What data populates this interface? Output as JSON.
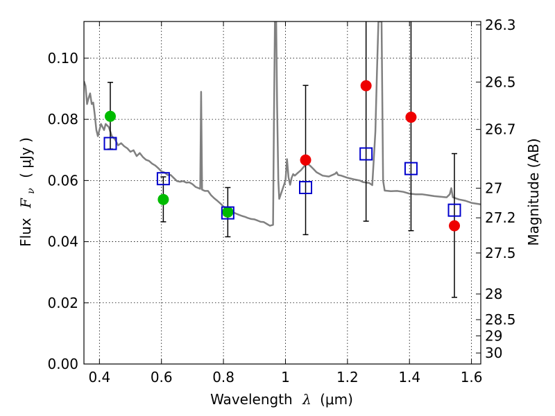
{
  "chart_data": {
    "type": "scatter",
    "xlabel_main": "Wavelength",
    "xlabel_symbol": "λ",
    "xlabel_unit": "(μm)",
    "ylabel_main": "Flux",
    "ylabel_symbol": "F",
    "ylabel_sub": "ν",
    "ylabel_unit": "( μJy )",
    "right_ylabel": "Magnitude (AB)",
    "xlim": [
      0.35,
      1.63
    ],
    "ylim": [
      0.0,
      0.112
    ],
    "grid": true,
    "x_ticks": [
      {
        "value": 0.4,
        "label": "0.4"
      },
      {
        "value": 0.6,
        "label": "0.6"
      },
      {
        "value": 0.8,
        "label": "0.8"
      },
      {
        "value": 1.0,
        "label": "1"
      },
      {
        "value": 1.2,
        "label": "1.2"
      },
      {
        "value": 1.4,
        "label": "1.4"
      },
      {
        "value": 1.6,
        "label": "1.6"
      }
    ],
    "y_ticks": [
      {
        "value": 0.0,
        "label": "0.00"
      },
      {
        "value": 0.02,
        "label": "0.02"
      },
      {
        "value": 0.04,
        "label": "0.04"
      },
      {
        "value": 0.06,
        "label": "0.06"
      },
      {
        "value": 0.08,
        "label": "0.08"
      },
      {
        "value": 0.1,
        "label": "0.10"
      }
    ],
    "right_ticks": [
      {
        "flux": 0.1109,
        "label": "26.3"
      },
      {
        "flux": 0.0922,
        "label": "26.5"
      },
      {
        "flux": 0.0767,
        "label": "26.7"
      },
      {
        "flux": 0.0575,
        "label": "27"
      },
      {
        "flux": 0.0478,
        "label": "27.2"
      },
      {
        "flux": 0.0363,
        "label": "27.5"
      },
      {
        "flux": 0.0229,
        "label": "28"
      },
      {
        "flux": 0.0145,
        "label": "28.5"
      },
      {
        "flux": 0.0092,
        "label": "29"
      },
      {
        "flux": 0.0036,
        "label": "30"
      }
    ],
    "colors": {
      "optical_points": "#00bb00",
      "nir_points": "#ee0000",
      "model_squares": "#0000cc",
      "template": "#808080",
      "errorbar": "#000000"
    },
    "observed_optical": [
      {
        "x": 0.435,
        "y": 0.081
      },
      {
        "x": 0.606,
        "y": 0.0538
      },
      {
        "x": 0.814,
        "y": 0.0497
      }
    ],
    "observed_nir": [
      {
        "x": 1.065,
        "y": 0.0667
      },
      {
        "x": 1.26,
        "y": 0.091
      },
      {
        "x": 1.405,
        "y": 0.0807
      },
      {
        "x": 1.545,
        "y": 0.0452
      }
    ],
    "errorbars": [
      {
        "x": 0.435,
        "low": 0.0703,
        "high": 0.0921
      },
      {
        "x": 0.606,
        "low": 0.0465,
        "high": 0.0612
      },
      {
        "x": 0.814,
        "low": 0.0416,
        "high": 0.0577
      },
      {
        "x": 1.065,
        "low": 0.0423,
        "high": 0.0911
      },
      {
        "x": 1.26,
        "low": 0.0467,
        "high": 0.112
      },
      {
        "x": 1.405,
        "low": 0.0436,
        "high": 0.112
      },
      {
        "x": 1.545,
        "low": 0.0218,
        "high": 0.0688
      }
    ],
    "model_photometry": [
      {
        "x": 0.435,
        "y": 0.0721
      },
      {
        "x": 0.606,
        "y": 0.0606
      },
      {
        "x": 0.814,
        "y": 0.0494
      },
      {
        "x": 1.065,
        "y": 0.0577
      },
      {
        "x": 1.26,
        "y": 0.0687
      },
      {
        "x": 1.405,
        "y": 0.0639
      },
      {
        "x": 1.545,
        "y": 0.0503
      }
    ],
    "template_spectrum": [
      [
        0.35,
        0.0925
      ],
      [
        0.355,
        0.091
      ],
      [
        0.36,
        0.085
      ],
      [
        0.365,
        0.087
      ],
      [
        0.37,
        0.0885
      ],
      [
        0.375,
        0.085
      ],
      [
        0.38,
        0.0855
      ],
      [
        0.385,
        0.0815
      ],
      [
        0.39,
        0.0765
      ],
      [
        0.395,
        0.0745
      ],
      [
        0.4,
        0.0765
      ],
      [
        0.405,
        0.0785
      ],
      [
        0.41,
        0.0775
      ],
      [
        0.415,
        0.0765
      ],
      [
        0.42,
        0.0785
      ],
      [
        0.43,
        0.0775
      ],
      [
        0.44,
        0.0745
      ],
      [
        0.45,
        0.0735
      ],
      [
        0.46,
        0.0715
      ],
      [
        0.47,
        0.0722
      ],
      [
        0.48,
        0.0712
      ],
      [
        0.49,
        0.0705
      ],
      [
        0.5,
        0.0694
      ],
      [
        0.51,
        0.0699
      ],
      [
        0.52,
        0.068
      ],
      [
        0.53,
        0.069
      ],
      [
        0.54,
        0.0677
      ],
      [
        0.55,
        0.0668
      ],
      [
        0.56,
        0.0664
      ],
      [
        0.57,
        0.0655
      ],
      [
        0.58,
        0.0649
      ],
      [
        0.59,
        0.064
      ],
      [
        0.6,
        0.063
      ],
      [
        0.61,
        0.0626
      ],
      [
        0.62,
        0.0618
      ],
      [
        0.63,
        0.0618
      ],
      [
        0.64,
        0.0608
      ],
      [
        0.65,
        0.0598
      ],
      [
        0.66,
        0.0596
      ],
      [
        0.67,
        0.0598
      ],
      [
        0.68,
        0.0593
      ],
      [
        0.69,
        0.0594
      ],
      [
        0.7,
        0.0588
      ],
      [
        0.71,
        0.0579
      ],
      [
        0.72,
        0.0575
      ],
      [
        0.725,
        0.0573
      ],
      [
        0.728,
        0.089
      ],
      [
        0.731,
        0.057
      ],
      [
        0.74,
        0.0566
      ],
      [
        0.75,
        0.0566
      ],
      [
        0.76,
        0.0552
      ],
      [
        0.77,
        0.0542
      ],
      [
        0.78,
        0.0534
      ],
      [
        0.79,
        0.0525
      ],
      [
        0.8,
        0.0515
      ],
      [
        0.81,
        0.0508
      ],
      [
        0.82,
        0.0502
      ],
      [
        0.83,
        0.0497
      ],
      [
        0.84,
        0.0492
      ],
      [
        0.85,
        0.0488
      ],
      [
        0.86,
        0.0484
      ],
      [
        0.87,
        0.0481
      ],
      [
        0.88,
        0.0477
      ],
      [
        0.89,
        0.0474
      ],
      [
        0.9,
        0.0473
      ],
      [
        0.91,
        0.0469
      ],
      [
        0.92,
        0.0465
      ],
      [
        0.93,
        0.0464
      ],
      [
        0.94,
        0.0458
      ],
      [
        0.95,
        0.0452
      ],
      [
        0.96,
        0.0455
      ],
      [
        0.963,
        0.08
      ],
      [
        0.966,
        0.112
      ],
      [
        0.97,
        0.112
      ],
      [
        0.973,
        0.085
      ],
      [
        0.977,
        0.06
      ],
      [
        0.98,
        0.054
      ],
      [
        0.99,
        0.057
      ],
      [
        1.0,
        0.06
      ],
      [
        1.005,
        0.067
      ],
      [
        1.01,
        0.061
      ],
      [
        1.015,
        0.0586
      ],
      [
        1.02,
        0.0609
      ],
      [
        1.025,
        0.0621
      ],
      [
        1.03,
        0.0616
      ],
      [
        1.04,
        0.0625
      ],
      [
        1.05,
        0.0634
      ],
      [
        1.06,
        0.0646
      ],
      [
        1.07,
        0.0656
      ],
      [
        1.08,
        0.0648
      ],
      [
        1.09,
        0.0638
      ],
      [
        1.1,
        0.0627
      ],
      [
        1.12,
        0.0616
      ],
      [
        1.14,
        0.0613
      ],
      [
        1.16,
        0.0622
      ],
      [
        1.165,
        0.0627
      ],
      [
        1.17,
        0.0618
      ],
      [
        1.18,
        0.0616
      ],
      [
        1.2,
        0.0609
      ],
      [
        1.22,
        0.0604
      ],
      [
        1.24,
        0.06
      ],
      [
        1.25,
        0.0595
      ],
      [
        1.27,
        0.0592
      ],
      [
        1.28,
        0.0585
      ],
      [
        1.29,
        0.076
      ],
      [
        1.295,
        0.095
      ],
      [
        1.3,
        0.112
      ],
      [
        1.31,
        0.112
      ],
      [
        1.315,
        0.06
      ],
      [
        1.32,
        0.0567
      ],
      [
        1.34,
        0.0565
      ],
      [
        1.36,
        0.0566
      ],
      [
        1.38,
        0.0563
      ],
      [
        1.4,
        0.0557
      ],
      [
        1.42,
        0.0555
      ],
      [
        1.44,
        0.0555
      ],
      [
        1.46,
        0.0552
      ],
      [
        1.48,
        0.0549
      ],
      [
        1.5,
        0.0547
      ],
      [
        1.52,
        0.0545
      ],
      [
        1.53,
        0.0555
      ],
      [
        1.535,
        0.0575
      ],
      [
        1.54,
        0.0545
      ],
      [
        1.56,
        0.0538
      ],
      [
        1.58,
        0.0534
      ],
      [
        1.6,
        0.0527
      ],
      [
        1.63,
        0.0522
      ]
    ]
  }
}
